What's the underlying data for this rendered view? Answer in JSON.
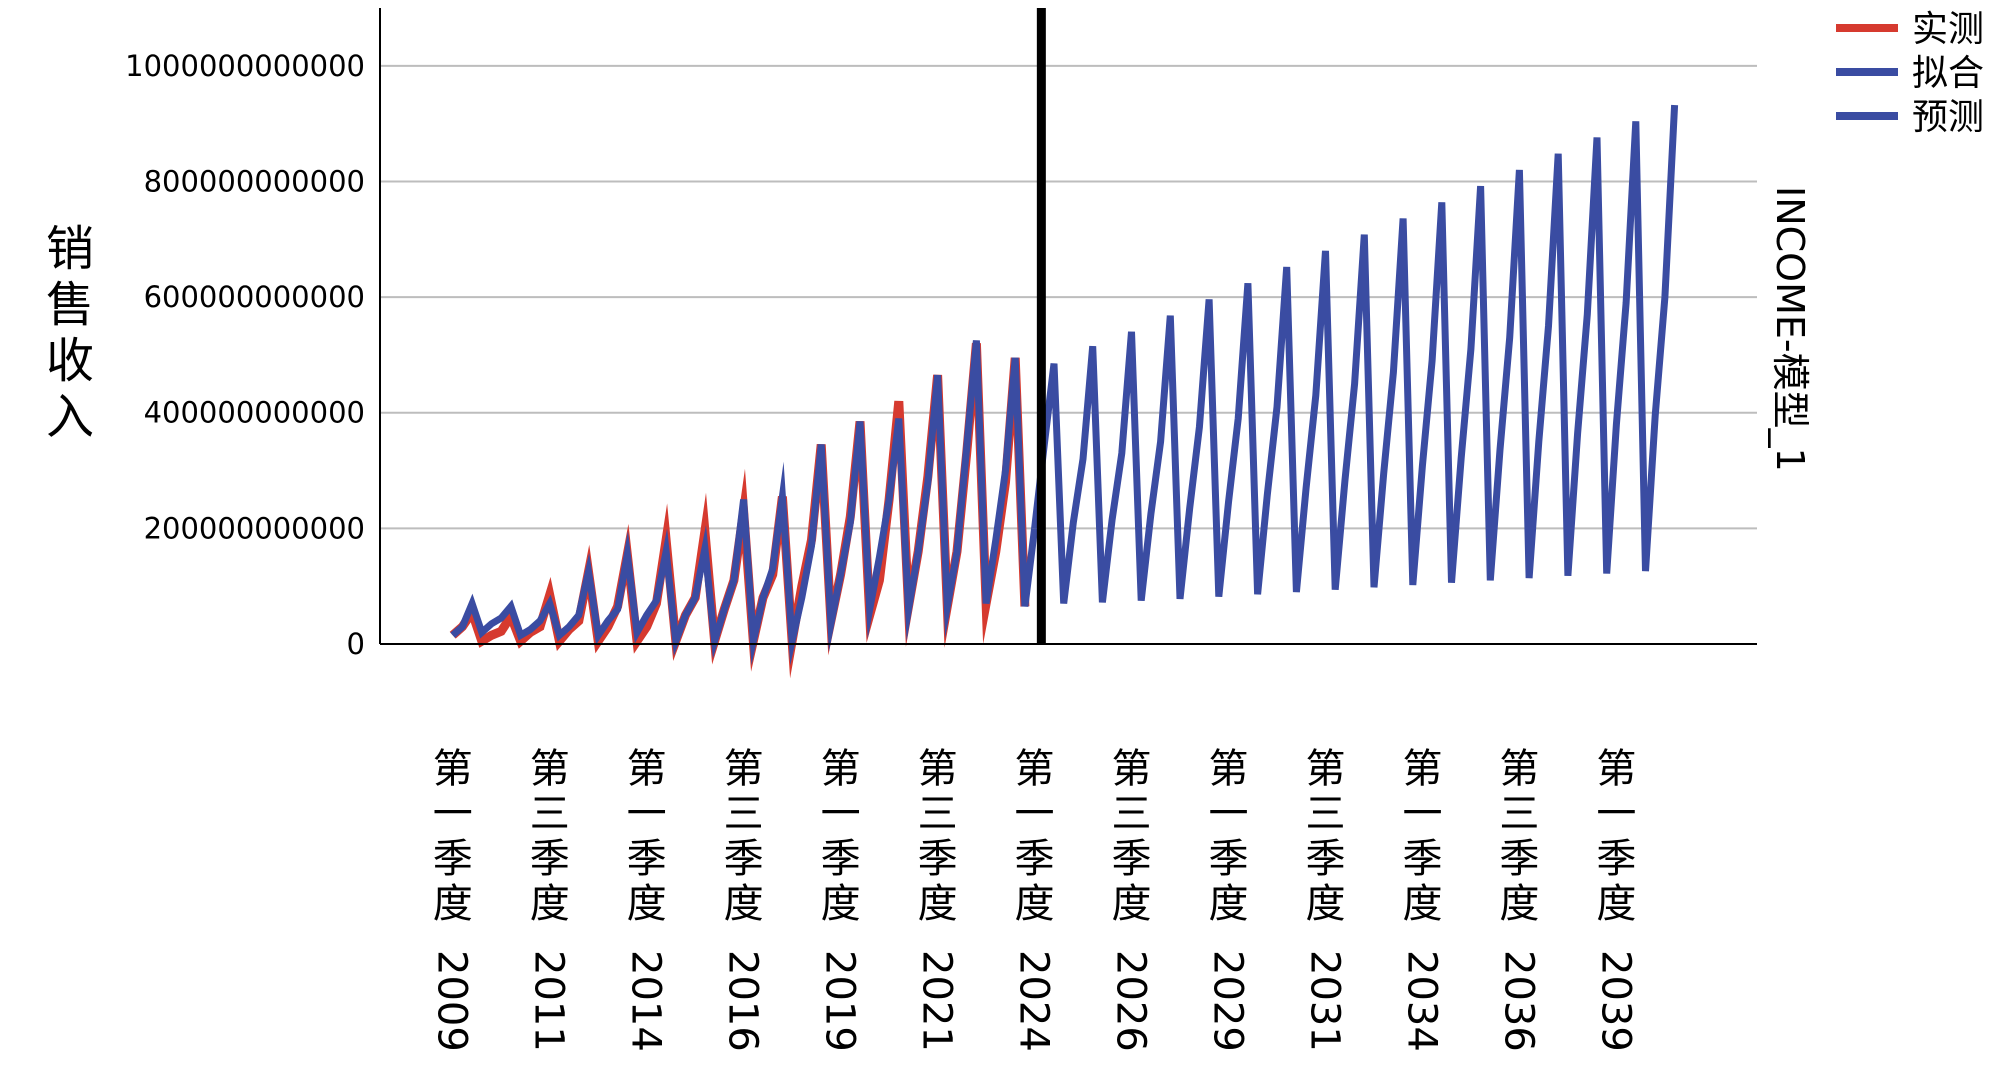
{
  "chart_data": {
    "type": "line",
    "ylabel": "销售收入",
    "model_label": "INCOME-模型_1",
    "ylim": [
      0,
      1100000000000
    ],
    "y_ticks": [
      {
        "value": 0,
        "label": "0"
      },
      {
        "value": 200000000000,
        "label": "200000000000"
      },
      {
        "value": 400000000000,
        "label": "400000000000"
      },
      {
        "value": 600000000000,
        "label": "600000000000"
      },
      {
        "value": 800000000000,
        "label": "800000000000"
      },
      {
        "value": 1000000000000,
        "label": "1000000000000"
      }
    ],
    "x_ticks": [
      {
        "index": 0,
        "quarter": "第一季度",
        "year": "2009"
      },
      {
        "index": 10,
        "quarter": "第三季度",
        "year": "2011"
      },
      {
        "index": 20,
        "quarter": "第一季度",
        "year": "2014"
      },
      {
        "index": 30,
        "quarter": "第三季度",
        "year": "2016"
      },
      {
        "index": 40,
        "quarter": "第一季度",
        "year": "2019"
      },
      {
        "index": 50,
        "quarter": "第三季度",
        "year": "2021"
      },
      {
        "index": 60,
        "quarter": "第一季度",
        "year": "2024"
      },
      {
        "index": 70,
        "quarter": "第三季度",
        "year": "2026"
      },
      {
        "index": 80,
        "quarter": "第一季度",
        "year": "2029"
      },
      {
        "index": 90,
        "quarter": "第三季度",
        "year": "2031"
      },
      {
        "index": 100,
        "quarter": "第一季度",
        "year": "2034"
      },
      {
        "index": 110,
        "quarter": "第三季度",
        "year": "2036"
      },
      {
        "index": 120,
        "quarter": "第一季度",
        "year": "2039"
      }
    ],
    "x_range": [
      -7.5,
      134.5
    ],
    "forecast_start_index": 60.7,
    "colors": {
      "observed": "#d63a2f",
      "fit": "#3a4ca2",
      "forecast": "#3a4ca2",
      "divider": "#000000",
      "grid": "#bdbdbd"
    },
    "legend": {
      "position": "top-right",
      "items": [
        {
          "key": "observed",
          "label": "实测"
        },
        {
          "key": "fit",
          "label": "拟合"
        },
        {
          "key": "forecast",
          "label": "预测"
        }
      ]
    },
    "series": [
      {
        "key": "observed",
        "name": "实测",
        "start_index": 0,
        "values": [
          15000000000,
          30000000000,
          55000000000,
          5000000000,
          15000000000,
          22000000000,
          48000000000,
          5000000000,
          20000000000,
          30000000000,
          85000000000,
          5000000000,
          25000000000,
          40000000000,
          125000000000,
          5000000000,
          30000000000,
          65000000000,
          155000000000,
          5000000000,
          30000000000,
          70000000000,
          180000000000,
          5000000000,
          50000000000,
          80000000000,
          195000000000,
          5000000000,
          60000000000,
          110000000000,
          230000000000,
          5000000000,
          80000000000,
          120000000000,
          255000000000,
          5000000000,
          100000000000,
          180000000000,
          345000000000,
          40000000000,
          120000000000,
          220000000000,
          385000000000,
          50000000000,
          110000000000,
          250000000000,
          420000000000,
          65000000000,
          160000000000,
          290000000000,
          465000000000,
          65000000000,
          160000000000,
          330000000000,
          520000000000,
          70000000000,
          160000000000,
          280000000000,
          495000000000,
          65000000000
        ]
      },
      {
        "key": "fit",
        "name": "拟合",
        "start_index": 0,
        "values": [
          15000000000,
          30000000000,
          70000000000,
          20000000000,
          35000000000,
          45000000000,
          65000000000,
          15000000000,
          25000000000,
          40000000000,
          70000000000,
          15000000000,
          30000000000,
          50000000000,
          125000000000,
          15000000000,
          40000000000,
          60000000000,
          155000000000,
          20000000000,
          50000000000,
          75000000000,
          160000000000,
          5000000000,
          50000000000,
          80000000000,
          165000000000,
          5000000000,
          60000000000,
          110000000000,
          250000000000,
          5000000000,
          80000000000,
          130000000000,
          255000000000,
          5000000000,
          80000000000,
          170000000000,
          345000000000,
          35000000000,
          120000000000,
          210000000000,
          385000000000,
          60000000000,
          150000000000,
          250000000000,
          390000000000,
          60000000000,
          160000000000,
          280000000000,
          465000000000,
          65000000000,
          160000000000,
          340000000000,
          525000000000,
          70000000000,
          180000000000,
          300000000000,
          495000000000,
          65000000000,
          200000000000
        ]
      },
      {
        "key": "forecast",
        "name": "预测",
        "start_index": 60,
        "values": [
          200000000000,
          345000000000,
          485000000000,
          70000000000,
          210000000000,
          320000000000,
          515000000000,
          72000000000,
          215000000000,
          330000000000,
          540000000000,
          75000000000,
          225000000000,
          350000000000,
          568000000000,
          78000000000,
          235000000000,
          375000000000,
          596000000000,
          82000000000,
          245000000000,
          390000000000,
          624000000000,
          86000000000,
          258000000000,
          410000000000,
          652000000000,
          90000000000,
          270000000000,
          430000000000,
          680000000000,
          94000000000,
          282000000000,
          450000000000,
          708000000000,
          98000000000,
          295000000000,
          470000000000,
          736000000000,
          102000000000,
          308000000000,
          490000000000,
          764000000000,
          106000000000,
          322000000000,
          510000000000,
          792000000000,
          110000000000,
          336000000000,
          530000000000,
          820000000000,
          114000000000,
          350000000000,
          550000000000,
          848000000000,
          118000000000,
          364000000000,
          570000000000,
          876000000000,
          122000000000,
          380000000000,
          590000000000,
          904000000000,
          126000000000,
          395000000000,
          600000000000,
          932000000000
        ]
      }
    ]
  }
}
